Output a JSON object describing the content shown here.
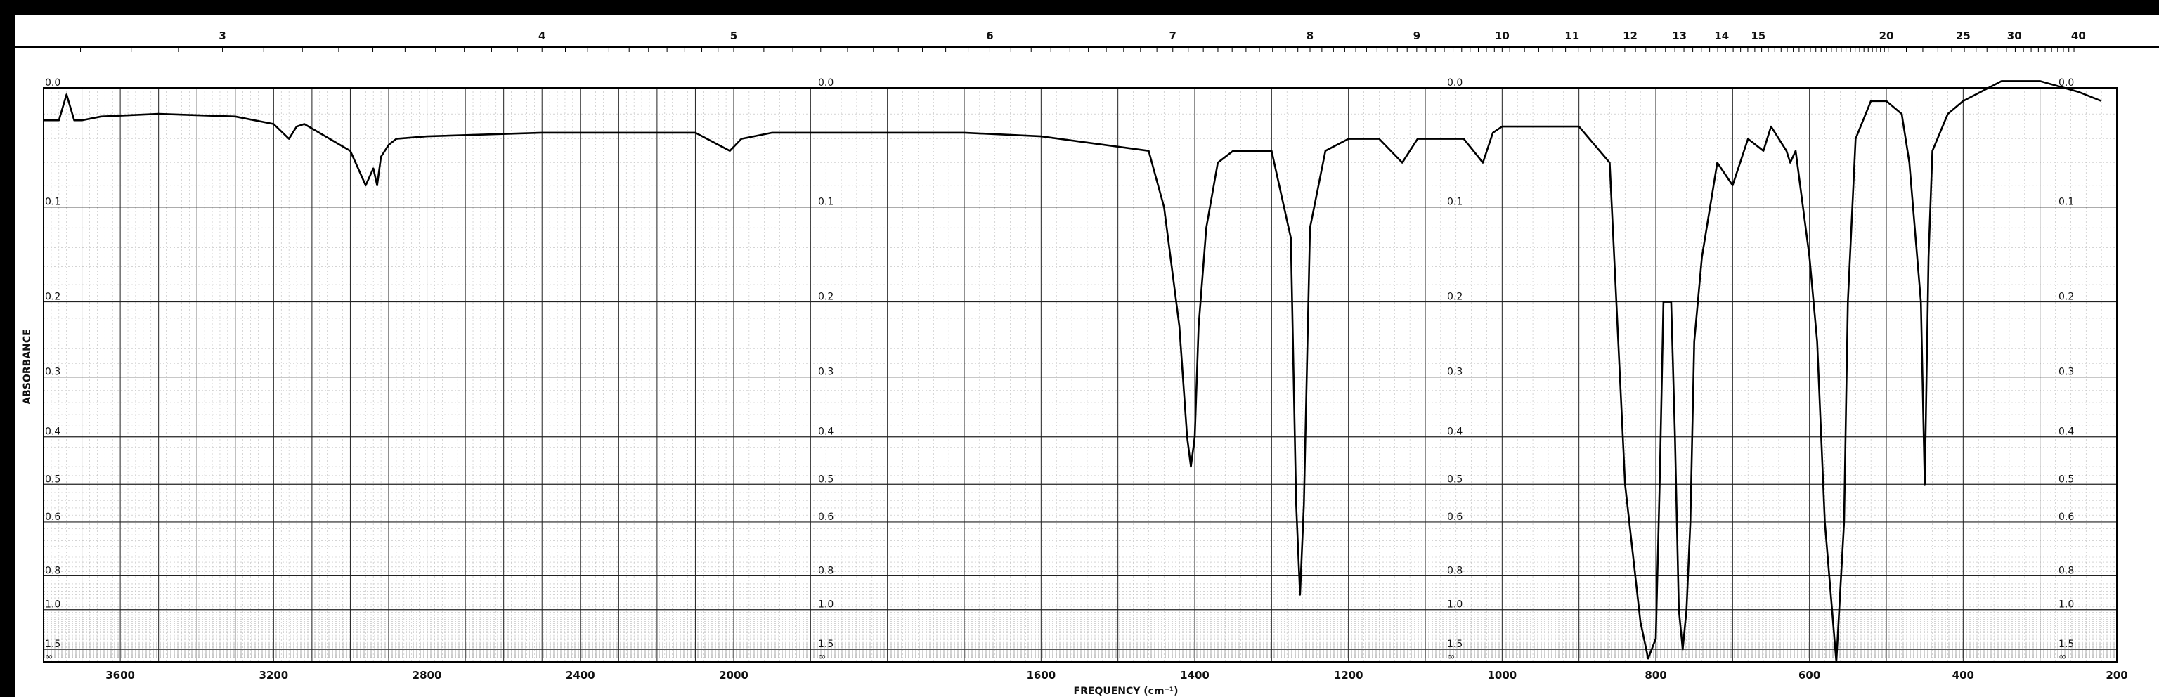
{
  "chart_data": {
    "type": "line",
    "xlabel": "FREQUENCY (cm⁻¹)",
    "ylabel": "ABSORBANCE",
    "xlim": [
      3800,
      200
    ],
    "x_ticks": [
      3600,
      3200,
      2800,
      2400,
      2000,
      1600,
      1400,
      1200,
      1000,
      800,
      600,
      400,
      200
    ],
    "top_axis_ticks": [
      "3",
      "4",
      "5",
      "6",
      "7",
      "8",
      "9",
      "10",
      "11",
      "12",
      "13",
      "14",
      "15",
      "20",
      "25",
      "30",
      "40"
    ],
    "y_scale": "absorbance",
    "y_ticks": [
      "0.0",
      "0.1",
      "0.2",
      "0.3",
      "0.4",
      "0.5",
      "0.6",
      "0.8",
      "1.0",
      "1.5",
      "∞"
    ],
    "grid": true,
    "series": [
      {
        "x": [
          3800,
          3760,
          3740,
          3720,
          3700,
          3650,
          3500,
          3300,
          3200,
          3160,
          3140,
          3120,
          3000,
          2960,
          2940,
          2930,
          2920,
          2900,
          2880,
          2800,
          2500,
          2100,
          2010,
          1990,
          1950,
          1700,
          1600,
          1460,
          1440,
          1420,
          1410,
          1405,
          1400,
          1395,
          1385,
          1370,
          1350,
          1300,
          1275,
          1268,
          1263,
          1258,
          1250,
          1230,
          1200,
          1160,
          1130,
          1110,
          1050,
          1025,
          1012,
          1000,
          900,
          860,
          840,
          820,
          810,
          800,
          795,
          790,
          780,
          775,
          770,
          765,
          760,
          755,
          750,
          740,
          720,
          700,
          680,
          660,
          650,
          630,
          625,
          618,
          600,
          590,
          580,
          565,
          555,
          550,
          540,
          520,
          500,
          480,
          470,
          455,
          450,
          445,
          440,
          420,
          400,
          350,
          300,
          250,
          220
        ],
        "y": [
          0.025,
          0.025,
          0.005,
          0.025,
          0.025,
          0.022,
          0.02,
          0.022,
          0.028,
          0.04,
          0.03,
          0.028,
          0.05,
          0.08,
          0.065,
          0.08,
          0.055,
          0.045,
          0.04,
          0.038,
          0.035,
          0.035,
          0.05,
          0.04,
          0.035,
          0.035,
          0.038,
          0.05,
          0.1,
          0.23,
          0.4,
          0.46,
          0.4,
          0.23,
          0.12,
          0.06,
          0.05,
          0.05,
          0.13,
          0.55,
          0.9,
          0.55,
          0.12,
          0.05,
          0.04,
          0.04,
          0.06,
          0.04,
          0.04,
          0.06,
          0.035,
          0.03,
          0.03,
          0.06,
          0.5,
          1.1,
          1.8,
          1.3,
          0.5,
          0.2,
          0.2,
          0.4,
          1.0,
          1.5,
          1.0,
          0.6,
          0.25,
          0.15,
          0.06,
          0.08,
          0.04,
          0.05,
          0.03,
          0.05,
          0.06,
          0.05,
          0.15,
          0.25,
          0.6,
          2.0,
          0.6,
          0.2,
          0.04,
          0.01,
          0.01,
          0.02,
          0.06,
          0.2,
          0.5,
          0.15,
          0.05,
          0.02,
          0.01,
          -0.005,
          -0.005,
          0.003,
          0.01
        ]
      }
    ]
  }
}
